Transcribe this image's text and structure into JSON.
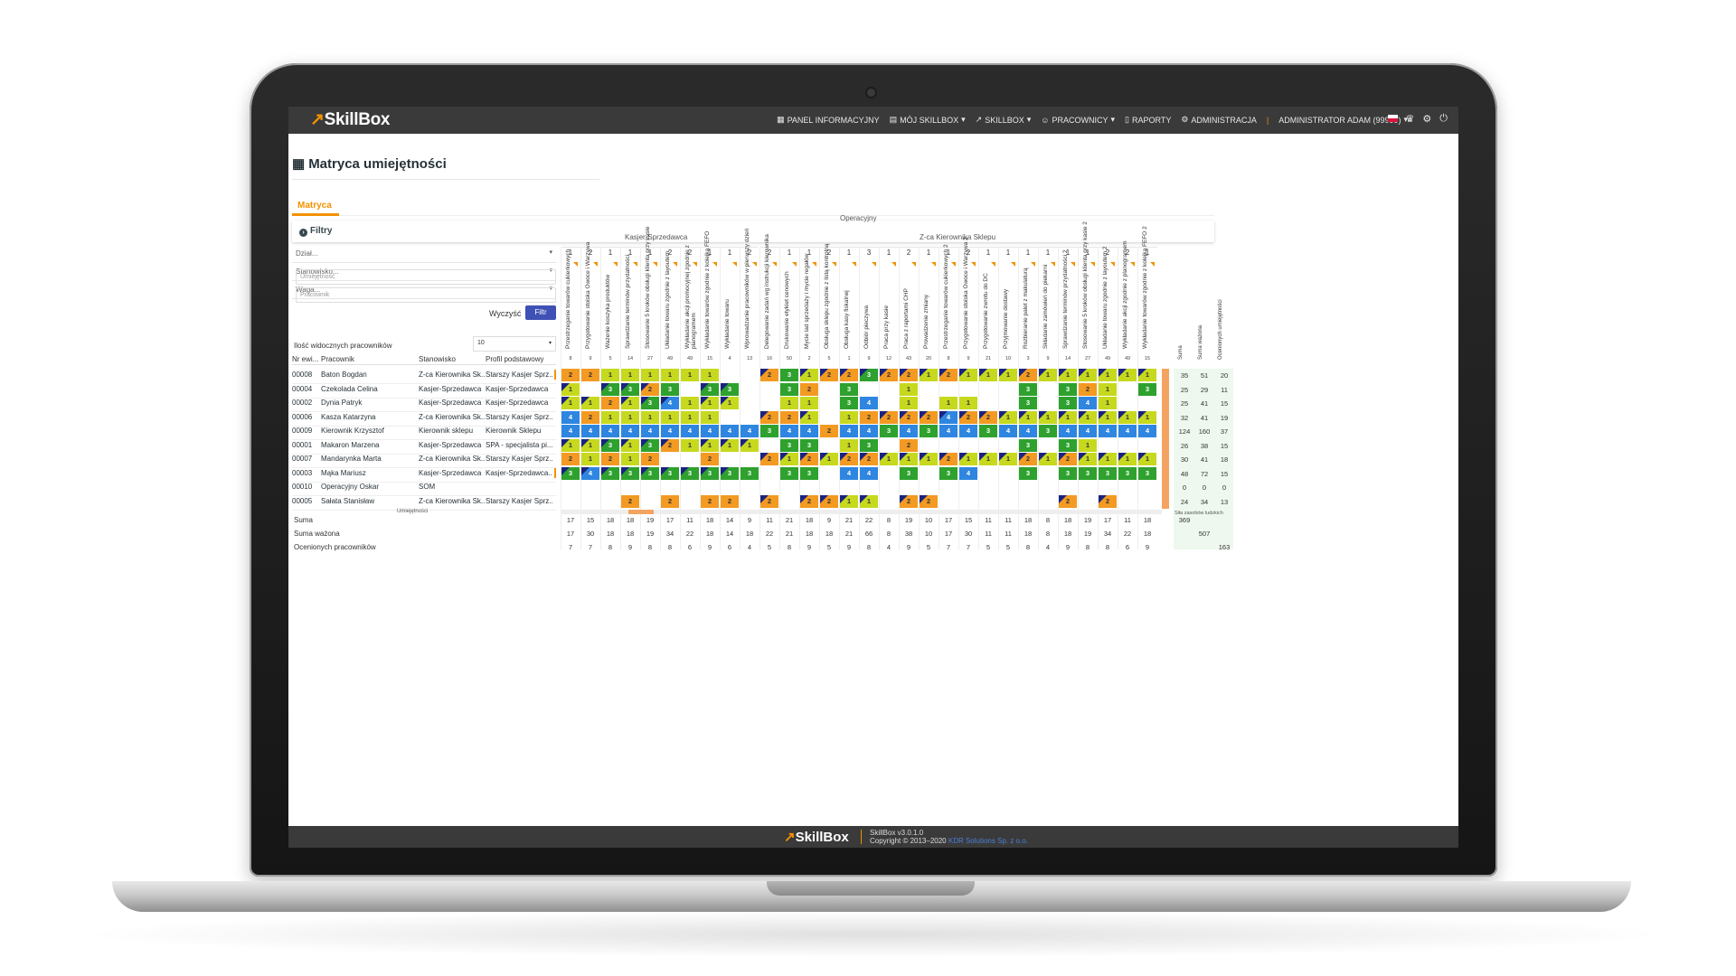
{
  "nav": {
    "logo": "SkillBox",
    "items": [
      "PANEL INFORMACYJNY",
      "MÓJ SKILLBOX",
      "SKILLBOX",
      "PRACOWNICY",
      "RAPORTY",
      "ADMINISTRACJA"
    ],
    "user": "ADMINISTRATOR ADAM (99999)",
    "icons": [
      "flag-pl",
      "trophy-icon",
      "gear-icon",
      "logout-icon"
    ]
  },
  "page": {
    "title": "Matryca umiejętności",
    "tab": "Matryca"
  },
  "filters": {
    "title": "Filtry",
    "dzial": "Dział...",
    "stanowisko": "Stanowisko...",
    "waga": "Waga...",
    "skill_placeholder": "Umiejętność",
    "employee_placeholder": "Pracownik",
    "clear_label": "Wyczyść",
    "filter_label": "Filtr",
    "visible_label": "Ilość widocznych pracowników",
    "visible_value": "10"
  },
  "headers": {
    "nr": "Nr ewi...",
    "employee": "Pracownik",
    "position": "Stanowisko",
    "profile": "Profil podstawowy"
  },
  "employees": [
    {
      "nr": "00008",
      "name": "Baton Bogdan",
      "position": "Z-ca Kierownika Sk...",
      "profile": "Starszy Kasjer Sprz..."
    },
    {
      "nr": "00004",
      "name": "Czekolada Celina",
      "position": "Kasjer-Sprzedawca",
      "profile": "Kasjer-Sprzedawca"
    },
    {
      "nr": "00002",
      "name": "Dynia Patryk",
      "position": "Kasjer-Sprzedawca",
      "profile": "Kasjer-Sprzedawca"
    },
    {
      "nr": "00006",
      "name": "Kasza Katarzyna",
      "position": "Z-ca Kierownika Sk...",
      "profile": "Starszy Kasjer Sprz..."
    },
    {
      "nr": "00009",
      "name": "Kierownik Krzysztof",
      "position": "Kierownik sklepu",
      "profile": "Kierownik Sklepu"
    },
    {
      "nr": "00001",
      "name": "Makaron Marzena",
      "position": "Kasjer-Sprzedawca",
      "profile": "SPA - specjalista pi..."
    },
    {
      "nr": "00007",
      "name": "Mandarynka Marta",
      "position": "Z-ca Kierownika Sk...",
      "profile": "Starszy Kasjer Sprz..."
    },
    {
      "nr": "00003",
      "name": "Mąka Mariusz",
      "position": "Kasjer-Sprzedawca",
      "profile": "Kasjer-Sprzedawca..."
    },
    {
      "nr": "00010",
      "name": "Operacyjny Oskar",
      "position": "SOM",
      "profile": ""
    },
    {
      "nr": "00005",
      "name": "Sałata Stanisław",
      "position": "Z-ca Kierownika Sk...",
      "profile": "Starszy Kasjer Sprz..."
    }
  ],
  "skill_header": {
    "group": "Operacyjny",
    "subgroups": [
      "Kasjer-Sprzedawca",
      "Z-ca Kierownika Sklepu"
    ]
  },
  "skills": [
    {
      "name": "Przestrzeganie towarów cukierkowych",
      "weight": "1",
      "count": "8"
    },
    {
      "name": "Przygotowanie stoiska Owoce i Warzywa",
      "weight": "2",
      "count": "9"
    },
    {
      "name": "Ważenie koszyka produktów",
      "weight": "1",
      "count": "5"
    },
    {
      "name": "Sprawdzanie terminów przydatności",
      "weight": "1",
      "count": "14"
    },
    {
      "name": "Stosowanie 5 kroków obsługi klienta przy kasie",
      "weight": "1",
      "count": "27"
    },
    {
      "name": "Układanie towaru zgodnie z layoutem",
      "weight": "2",
      "count": "49"
    },
    {
      "name": "Wykładanie akcji promocyjnej zgodnie z planogramem",
      "weight": "2",
      "count": "49"
    },
    {
      "name": "Wykładanie towarów zgodnie z kolejką FEFO",
      "weight": "1",
      "count": "15"
    },
    {
      "name": "Wykładanie towaru",
      "weight": "1",
      "count": "4"
    },
    {
      "name": "Wprowadzanie pracowników w pierwszy dzień",
      "weight": "2",
      "count": "13"
    },
    {
      "name": "Delegowanie zadań wg instrukcji kierownika",
      "weight": "2",
      "count": "16"
    },
    {
      "name": "Drukowanie etykiet cenowych",
      "weight": "1",
      "count": "50"
    },
    {
      "name": "Mycie lad sprzedaży i mycie regałów",
      "weight": "1",
      "count": "2"
    },
    {
      "name": "Obsługa sklepu zgodnie z listą kontrolną",
      "weight": "2",
      "count": "5"
    },
    {
      "name": "Obsługa kasy fiskalnej",
      "weight": "1",
      "count": "1"
    },
    {
      "name": "Odbiór pieczywa",
      "weight": "3",
      "count": "9"
    },
    {
      "name": "Praca przy kasie",
      "weight": "1",
      "count": "12"
    },
    {
      "name": "Praca z raportami CHP",
      "weight": "2",
      "count": "43"
    },
    {
      "name": "Prowadzenie zmiany",
      "weight": "1",
      "count": "20"
    },
    {
      "name": "Przestrzeganie towarów cukierkowych 2",
      "weight": "1",
      "count": "8"
    },
    {
      "name": "Przygotowanie stoiska Owoce i Warzywa 2",
      "weight": "2",
      "count": "9"
    },
    {
      "name": "Przygotowanie zwrotu do DC",
      "weight": "1",
      "count": "21"
    },
    {
      "name": "Przyjmowanie dostawy",
      "weight": "1",
      "count": "10"
    },
    {
      "name": "Rozbieranie palet z makulaturą",
      "weight": "1",
      "count": "3"
    },
    {
      "name": "Składanie zamówień do piekarni",
      "weight": "1",
      "count": "9"
    },
    {
      "name": "Sprawdzanie terminów przydatności 2",
      "weight": "1",
      "count": "14"
    },
    {
      "name": "Stosowanie 5 kroków obsługi klienta przy kasie 2",
      "weight": "1",
      "count": "27"
    },
    {
      "name": "Układanie towaru zgodnie z layoutem 2",
      "weight": "2",
      "count": "49"
    },
    {
      "name": "Wykładanie akcji zgodnie z planogramem",
      "weight": "2",
      "count": "49"
    },
    {
      "name": "Wykładanie towarów zgodnie z kolejką FEFO 2",
      "weight": "1",
      "count": "15"
    }
  ],
  "matrix": [
    [
      "2o",
      "2o",
      "1y",
      "1y",
      "1y",
      "1y",
      "1y",
      "1y",
      "",
      "",
      "2o*",
      "3g",
      "1y*",
      "2o*",
      "2o*",
      "3g*",
      "2o*",
      "2o*",
      "1y*",
      "2o*",
      "1y*",
      "1y*",
      "1y*",
      "2o*",
      "1y*",
      "1y*",
      "1y*",
      "1y*",
      "1y*",
      "1y*"
    ],
    [
      "1y*",
      "",
      "3g*",
      "3g*",
      "2o*",
      "3g",
      "",
      "3g*",
      "3g*",
      "",
      "",
      "3g",
      "2o",
      "",
      "3g",
      "",
      "",
      "1y",
      "",
      "",
      "",
      "",
      "",
      "3g",
      "",
      "3g",
      "2o",
      "1y",
      "",
      "3g"
    ],
    [
      "1y*",
      "1y*",
      "2o",
      "1y*",
      "3g*",
      "4b*",
      "1y",
      "1y*",
      "1y*",
      "",
      "",
      "1y",
      "1y",
      "",
      "3g",
      "4b",
      "",
      "1y",
      "",
      "1y",
      "1y",
      "",
      "",
      "3g",
      "",
      "3g",
      "4b",
      "1y",
      "",
      ""
    ],
    [
      "4b",
      "2o",
      "1y",
      "1y",
      "1y",
      "1y",
      "1y",
      "1y",
      "",
      "",
      "2o*",
      "2o",
      "1y*",
      "",
      "1y",
      "2o",
      "2o*",
      "2o*",
      "2o*",
      "4b*",
      "2o*",
      "2o*",
      "1y*",
      "1y*",
      "1y*",
      "1y*",
      "1y*",
      "1y*",
      "1y*",
      "1y*"
    ],
    [
      "4b",
      "4b",
      "4b",
      "4b",
      "4b",
      "4b",
      "4b",
      "4b",
      "4b",
      "4b",
      "3g",
      "4b",
      "4b",
      "2o",
      "4b",
      "4b",
      "3g",
      "4b",
      "3g",
      "4b",
      "4b",
      "3g",
      "4b",
      "4b",
      "3g",
      "4b",
      "4b",
      "4b",
      "4b",
      "4b"
    ],
    [
      "1y*",
      "1y*",
      "3g*",
      "1y*",
      "3g*",
      "2o*",
      "1y",
      "1y*",
      "1y*",
      "1y*",
      "",
      "3g",
      "3g",
      "",
      "1y",
      "3g",
      "",
      "2o",
      "",
      "",
      "",
      "",
      "",
      "3g",
      "",
      "3g",
      "1y",
      "",
      "",
      ""
    ],
    [
      "2o",
      "1y",
      "2o",
      "1y",
      "2o",
      "",
      "",
      "2o",
      "",
      "",
      "2o*",
      "1y*",
      "2o*",
      "1y*",
      "2o*",
      "2o*",
      "1y*",
      "1y*",
      "1y*",
      "2o*",
      "1y*",
      "1y*",
      "1y*",
      "2o*",
      "1y*",
      "2o*",
      "1y*",
      "1y*",
      "1y*",
      "1y*"
    ],
    [
      "3g*",
      "4b*",
      "3g*",
      "3g*",
      "3g*",
      "3g*",
      "3g*",
      "3g*",
      "3g*",
      "3g",
      "",
      "3g",
      "3g",
      "",
      "4b",
      "4b",
      "",
      "3g",
      "",
      "3g",
      "4b",
      "",
      "",
      "3g",
      "",
      "3g",
      "3g",
      "3g",
      "3g",
      "3g"
    ],
    [
      "",
      "",
      "",
      "",
      "",
      "",
      "",
      "",
      "",
      "",
      "",
      "",
      "",
      "",
      "",
      "",
      "",
      "",
      "",
      "",
      "",
      "",
      "",
      "",
      "",
      "",
      "",
      "",
      "",
      ""
    ],
    [
      "",
      "",
      "",
      "2o",
      "",
      "2o",
      "",
      "2o",
      "2o",
      "",
      "2o*",
      "",
      "2o*",
      "2o*",
      "1y*",
      "1y*",
      "",
      "2o*",
      "2o*",
      "",
      "",
      "",
      "",
      "",
      "",
      "2o*",
      "",
      "2o*",
      "",
      ""
    ]
  ],
  "row_totals": [
    [
      "35",
      "51",
      "20"
    ],
    [
      "25",
      "29",
      "11"
    ],
    [
      "25",
      "41",
      "15"
    ],
    [
      "32",
      "41",
      "19"
    ],
    [
      "124",
      "160",
      "37"
    ],
    [
      "26",
      "38",
      "15"
    ],
    [
      "30",
      "41",
      "18"
    ],
    [
      "48",
      "72",
      "15"
    ],
    [
      "0",
      "0",
      "0"
    ],
    [
      "24",
      "34",
      "13"
    ]
  ],
  "right_labels": [
    "Suma",
    "Suma ważona",
    "Ocenionych umiejętności"
  ],
  "zasob_label": "Siła zasobów ludzkich",
  "umiej_label": "Umiejętności",
  "footer_rows": [
    {
      "label": "Suma",
      "values": [
        "17",
        "15",
        "18",
        "18",
        "19",
        "17",
        "11",
        "18",
        "14",
        "9",
        "11",
        "21",
        "18",
        "9",
        "21",
        "22",
        "8",
        "19",
        "10",
        "17",
        "15",
        "11",
        "11",
        "18",
        "8",
        "18",
        "19",
        "17",
        "11",
        "18"
      ],
      "extra": [
        "369",
        "",
        ""
      ]
    },
    {
      "label": "Suma ważona",
      "values": [
        "17",
        "30",
        "18",
        "18",
        "19",
        "34",
        "22",
        "18",
        "14",
        "18",
        "22",
        "21",
        "18",
        "18",
        "21",
        "66",
        "8",
        "38",
        "10",
        "17",
        "30",
        "11",
        "11",
        "18",
        "8",
        "18",
        "19",
        "34",
        "22",
        "18"
      ],
      "extra": [
        "",
        "507",
        ""
      ]
    },
    {
      "label": "Ocenionych pracowników",
      "values": [
        "7",
        "7",
        "8",
        "9",
        "8",
        "8",
        "6",
        "9",
        "6",
        "4",
        "5",
        "8",
        "9",
        "5",
        "9",
        "8",
        "4",
        "9",
        "5",
        "7",
        "7",
        "5",
        "5",
        "8",
        "4",
        "9",
        "8",
        "8",
        "6",
        "9"
      ],
      "extra": [
        "",
        "",
        "163"
      ]
    }
  ],
  "footer": {
    "logo": "SkillBox",
    "version": "SkillBox v3.0.1.0",
    "copyright": "Copyright © 2013–2020",
    "company": "KDR Solutions Sp. z o.o."
  }
}
